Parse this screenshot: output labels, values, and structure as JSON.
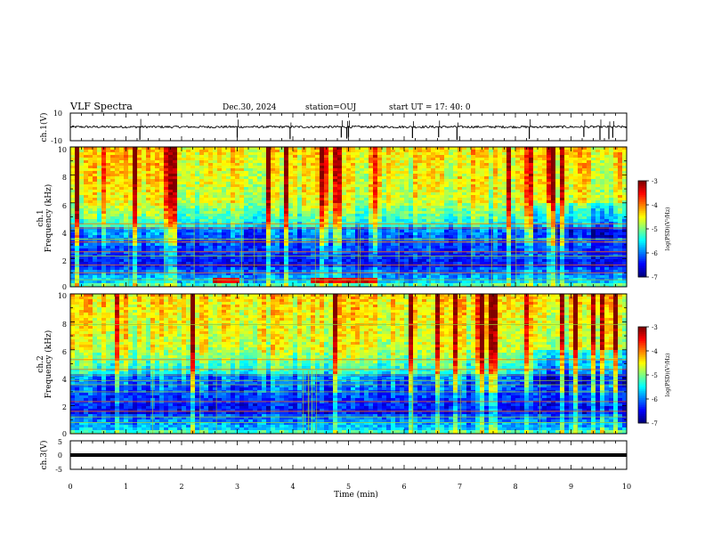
{
  "header": {
    "title": "VLF Spectra",
    "date": "Dec.30, 2024",
    "station": "station=OUJ",
    "start": "start  UT  =   17: 40: 0"
  },
  "chart_data": [
    {
      "type": "line",
      "name": "ch1-waveform",
      "ylabel": "ch.1(V)",
      "ylim": [
        -10,
        10
      ],
      "y_ticks": [
        "10",
        "-10"
      ],
      "baseline": 0,
      "noise_amplitude": 0.8,
      "spike_times_min": [
        1.25,
        3.0,
        3.95,
        4.87,
        4.97,
        5.0,
        6.15,
        6.62,
        6.95,
        8.25,
        9.23,
        9.52,
        9.68,
        9.75
      ]
    },
    {
      "type": "heatmap",
      "name": "ch1-spectrogram",
      "ylabel": [
        "ch.1",
        "Frequency (kHz)"
      ],
      "ylim": [
        0,
        10
      ],
      "y_ticks": [
        "0",
        "2",
        "4",
        "6",
        "8",
        "10"
      ],
      "colorbar": {
        "label": "log(PSD)(V²/Hz)",
        "range": [
          -7,
          -3
        ],
        "ticks": [
          "-3",
          "-4",
          "-5",
          "-6",
          "-7"
        ]
      },
      "band_lines_khz": [
        0.5,
        1.0,
        1.55,
        2.2,
        2.5,
        3.2,
        3.4,
        4.2,
        4.5
      ],
      "bright_patches": [
        {
          "t": [
            2.5,
            3.0
          ],
          "f": [
            0.3,
            0.8
          ]
        },
        {
          "t": [
            4.3,
            5.5
          ],
          "f": [
            0.3,
            0.8
          ]
        }
      ]
    },
    {
      "type": "heatmap",
      "name": "ch2-spectrogram",
      "ylabel": [
        "ch.2",
        "Frequency (kHz)"
      ],
      "ylim": [
        0,
        10
      ],
      "y_ticks": [
        "0",
        "2",
        "4",
        "6",
        "8",
        "10"
      ],
      "colorbar": {
        "label": "log(PSD)(V²/Hz)",
        "range": [
          -7,
          -3
        ],
        "ticks": [
          "-3",
          "-4",
          "-5",
          "-6",
          "-7"
        ]
      },
      "band_lines_khz": [
        0.8,
        1.2,
        1.6,
        2.3,
        3.0,
        3.5,
        3.8,
        4.2,
        4.6,
        5.3,
        7.8
      ],
      "bright_patches": []
    },
    {
      "type": "line",
      "name": "ch3-trace",
      "ylabel": "ch.3(V)",
      "ylim": [
        -5,
        5
      ],
      "y_ticks": [
        "5",
        "0",
        "-5"
      ],
      "value": 0,
      "xlabel": "Time  (min)",
      "xlim": [
        0,
        10
      ],
      "x_ticks": [
        "0",
        "1",
        "2",
        "3",
        "4",
        "5",
        "6",
        "7",
        "8",
        "9",
        "10"
      ]
    }
  ],
  "colors": {
    "axis": "#000000",
    "trace": "#000000",
    "grid_lines": "#9acd32"
  }
}
